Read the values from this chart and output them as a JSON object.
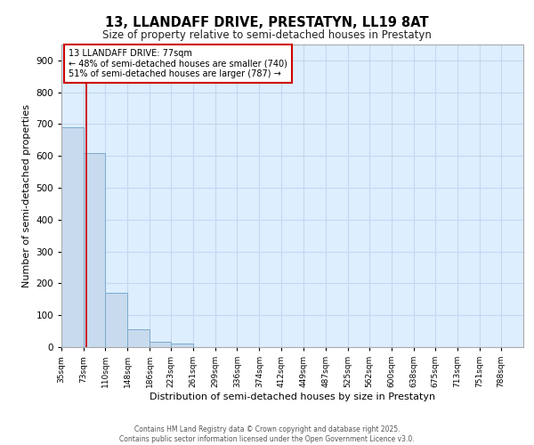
{
  "title_line1": "13, LLANDAFF DRIVE, PRESTATYN, LL19 8AT",
  "title_line2": "Size of property relative to semi-detached houses in Prestatyn",
  "xlabel": "Distribution of semi-detached houses by size in Prestatyn",
  "ylabel": "Number of semi-detached properties",
  "bin_labels": [
    "35sqm",
    "73sqm",
    "110sqm",
    "148sqm",
    "186sqm",
    "223sqm",
    "261sqm",
    "299sqm",
    "336sqm",
    "374sqm",
    "412sqm",
    "449sqm",
    "487sqm",
    "525sqm",
    "562sqm",
    "600sqm",
    "638sqm",
    "675sqm",
    "713sqm",
    "751sqm",
    "788sqm"
  ],
  "bin_edges": [
    35,
    73,
    110,
    148,
    186,
    223,
    261,
    299,
    336,
    374,
    412,
    449,
    487,
    525,
    562,
    600,
    638,
    675,
    713,
    751,
    788,
    826
  ],
  "bar_heights": [
    690,
    610,
    170,
    57,
    18,
    12,
    0,
    0,
    0,
    0,
    0,
    0,
    0,
    0,
    0,
    0,
    0,
    0,
    0,
    0,
    0
  ],
  "bar_color": "#c8daee",
  "bar_edge_color": "#7aaace",
  "grid_color": "#c5d8f0",
  "background_color": "#ddeeff",
  "vline_x": 77,
  "vline_color": "#cc0000",
  "annotation_title": "13 LLANDAFF DRIVE: 77sqm",
  "annotation_line1": "← 48% of semi-detached houses are smaller (740)",
  "annotation_line2": "51% of semi-detached houses are larger (787) →",
  "annotation_box_color": "#ffffff",
  "annotation_box_edge": "#cc0000",
  "ylim": [
    0,
    950
  ],
  "yticks": [
    0,
    100,
    200,
    300,
    400,
    500,
    600,
    700,
    800,
    900
  ],
  "footer_line1": "Contains HM Land Registry data © Crown copyright and database right 2025.",
  "footer_line2": "Contains public sector information licensed under the Open Government Licence v3.0."
}
